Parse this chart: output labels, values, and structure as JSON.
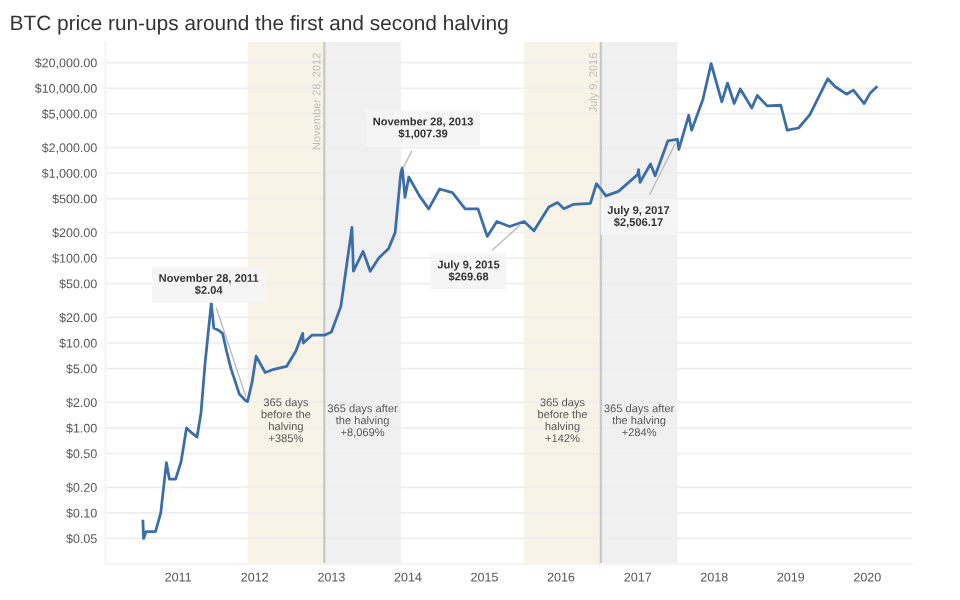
{
  "chart_data": {
    "type": "line",
    "title": "BTC price run-ups around the first and second halving",
    "x": [
      "2010-07-17",
      "2010-07-20",
      "2010-08-01",
      "2010-09-15",
      "2010-10-10",
      "2010-11-06",
      "2010-11-20",
      "2010-12-20",
      "2011-01-15",
      "2011-02-10",
      "2011-03-01",
      "2011-04-01",
      "2011-04-20",
      "2011-05-10",
      "2011-06-08",
      "2011-06-20",
      "2011-07-15",
      "2011-08-01",
      "2011-08-20",
      "2011-09-10",
      "2011-10-20",
      "2011-11-18",
      "2011-11-28",
      "2011-12-20",
      "2012-01-08",
      "2012-02-20",
      "2012-04-01",
      "2012-06-01",
      "2012-07-15",
      "2012-08-17",
      "2012-08-20",
      "2012-10-01",
      "2012-11-28",
      "2013-01-01",
      "2013-02-15",
      "2013-04-09",
      "2013-04-16",
      "2013-06-01",
      "2013-07-05",
      "2013-08-15",
      "2013-10-01",
      "2013-11-01",
      "2013-11-28",
      "2013-12-05",
      "2013-12-18",
      "2014-01-05",
      "2014-02-25",
      "2014-04-10",
      "2014-06-01",
      "2014-08-01",
      "2014-10-01",
      "2014-12-01",
      "2015-01-14",
      "2015-03-01",
      "2015-05-01",
      "2015-07-09",
      "2015-08-25",
      "2015-11-04",
      "2015-12-15",
      "2016-01-15",
      "2016-03-01",
      "2016-05-20",
      "2016-06-18",
      "2016-07-09",
      "2016-08-02",
      "2016-10-01",
      "2016-12-31",
      "2017-01-05",
      "2017-01-12",
      "2017-03-03",
      "2017-03-25",
      "2017-05-25",
      "2017-07-09",
      "2017-07-16",
      "2017-09-01",
      "2017-09-15",
      "2017-11-08",
      "2017-12-17",
      "2018-02-06",
      "2018-03-05",
      "2018-04-06",
      "2018-05-05",
      "2018-06-29",
      "2018-07-25",
      "2018-09-10",
      "2018-11-14",
      "2018-12-15",
      "2019-02-07",
      "2019-04-02",
      "2019-06-26",
      "2019-08-01",
      "2019-09-24",
      "2019-10-26",
      "2019-12-17",
      "2020-01-15",
      "2020-02-13"
    ],
    "series": [
      {
        "color": "#3b6ea8",
        "values": [
          0.08,
          0.05,
          0.06,
          0.06,
          0.1,
          0.39,
          0.25,
          0.25,
          0.4,
          1.0,
          0.9,
          0.78,
          1.5,
          6,
          29.6,
          15,
          14,
          13,
          8,
          5,
          2.5,
          2.1,
          2.04,
          3.5,
          7,
          4.5,
          4.9,
          5.3,
          8,
          13,
          10,
          12.4,
          12.35,
          13.5,
          27,
          230,
          70,
          120,
          70,
          100,
          130,
          200,
          1007.39,
          1150,
          520,
          900,
          540,
          380,
          650,
          590,
          380,
          380,
          180,
          270,
          235,
          269.68,
          210,
          400,
          450,
          380,
          430,
          440,
          750,
          650,
          540,
          610,
          960,
          1100,
          780,
          1280,
          930,
          2400,
          2506.17,
          1900,
          4800,
          3200,
          7400,
          19500,
          6900,
          11500,
          6600,
          9800,
          5850,
          8200,
          6200,
          6300,
          3200,
          3400,
          4900,
          12900,
          10400,
          8500,
          9500,
          6600,
          8800,
          10300
        ]
      }
    ],
    "log": "y",
    "xlim": [
      "2010-01-20",
      "2020-08-01"
    ],
    "xticks": [
      {
        "value": "2011-01-01",
        "label": "2011"
      },
      {
        "value": "2012-01-01",
        "label": "2012"
      },
      {
        "value": "2013-01-01",
        "label": "2013"
      },
      {
        "value": "2014-01-01",
        "label": "2014"
      },
      {
        "value": "2015-01-01",
        "label": "2015"
      },
      {
        "value": "2016-01-01",
        "label": "2016"
      },
      {
        "value": "2017-01-01",
        "label": "2017"
      },
      {
        "value": "2018-01-01",
        "label": "2018"
      },
      {
        "value": "2019-01-01",
        "label": "2019"
      },
      {
        "value": "2020-01-01",
        "label": "2020"
      }
    ],
    "ylim": [
      0.025,
      35000
    ],
    "yticks": [
      {
        "value": 0.05,
        "label": "$0.05"
      },
      {
        "value": 0.1,
        "label": "$0.10"
      },
      {
        "value": 0.2,
        "label": "$0.20"
      },
      {
        "value": 0.5,
        "label": "$0.50"
      },
      {
        "value": 1,
        "label": "$1.00"
      },
      {
        "value": 2,
        "label": "$2.00"
      },
      {
        "value": 5,
        "label": "$5.00"
      },
      {
        "value": 10,
        "label": "$10.00"
      },
      {
        "value": 20,
        "label": "$20.00"
      },
      {
        "value": 50,
        "label": "$50.00"
      },
      {
        "value": 100,
        "label": "$100.00"
      },
      {
        "value": 200,
        "label": "$200.00"
      },
      {
        "value": 500,
        "label": "$500.00"
      },
      {
        "value": 1000,
        "label": "$1,000.00"
      },
      {
        "value": 2000,
        "label": "$2,000.00"
      },
      {
        "value": 5000,
        "label": "$5,000.00"
      },
      {
        "value": 10000,
        "label": "$10,000.00"
      },
      {
        "value": 20000,
        "label": "$20,000.00"
      }
    ],
    "grid": "y",
    "bands": [
      {
        "axis": "x",
        "from": "2011-11-28",
        "to": "2012-11-28",
        "label": "365 days\nbefore the\nhalving\n+385%",
        "color": "#f7f3e6"
      },
      {
        "axis": "x",
        "from": "2012-11-28",
        "to": "2013-11-28",
        "label": "365 days after\nthe halving\n+8,069%",
        "color": "#f0f0f0"
      },
      {
        "axis": "x",
        "from": "2015-07-09",
        "to": "2016-07-09",
        "label": "365 days\nbefore the\nhalving\n+142%",
        "color": "#f7f3e6"
      },
      {
        "axis": "x",
        "from": "2016-07-09",
        "to": "2017-07-09",
        "label": "365 days after\nthe halving\n+284%",
        "color": "#f0f0f0"
      }
    ],
    "ref_lines": [
      {
        "axis": "x",
        "value": "2012-11-28",
        "label": "November 28, 2012",
        "color": "#c8c8c8"
      },
      {
        "axis": "x",
        "value": "2016-07-09",
        "label": "July 9, 2016",
        "color": "#c8c8c8"
      }
    ],
    "annotations": [
      {
        "text": "November 28, 2011\n$2.04",
        "x": "2011-11-28",
        "y": 2.04
      },
      {
        "text": "November 28, 2013\n$1,007.39",
        "x": "2013-11-28",
        "y": 1007.39
      },
      {
        "text": "July 9, 2015\n$269.68",
        "x": "2015-07-09",
        "y": 269.68
      },
      {
        "text": "July 9, 2017\n$2,506.17",
        "x": "2017-07-09",
        "y": 2506.17
      }
    ]
  }
}
